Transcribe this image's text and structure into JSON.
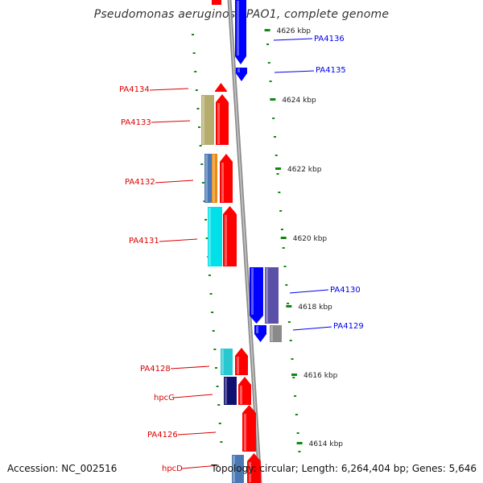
{
  "title": "Pseudomonas aeruginosa PAO1, complete genome",
  "footer": {
    "accession": "Accession: NC_002516",
    "summary": "Topology: circular; Length: 6,264,404 bp; Genes: 5,646"
  },
  "kbp_ticks": [
    "4626 kbp",
    "4624 kbp",
    "4622 kbp",
    "4620 kbp",
    "4618 kbp",
    "4616 kbp",
    "4614 kbp"
  ],
  "genes": [
    {
      "label": "PA4136",
      "strand": "-",
      "color": "#0000ee"
    },
    {
      "label": "PA4135",
      "strand": "-",
      "color": "#0000ee"
    },
    {
      "label": "PA4134",
      "strand": "+",
      "color": "#dd0000"
    },
    {
      "label": "PA4133",
      "strand": "+",
      "color": "#dd0000"
    },
    {
      "label": "PA4132",
      "strand": "+",
      "color": "#dd0000"
    },
    {
      "label": "PA4131",
      "strand": "+",
      "color": "#dd0000"
    },
    {
      "label": "PA4130",
      "strand": "-",
      "color": "#0000ee"
    },
    {
      "label": "PA4129",
      "strand": "-",
      "color": "#0000ee"
    },
    {
      "label": "PA4128",
      "strand": "+",
      "color": "#dd0000"
    },
    {
      "label": "hpcG",
      "strand": "+",
      "color": "#dd0000"
    },
    {
      "label": "PA4126",
      "strand": "+",
      "color": "#dd0000"
    },
    {
      "label": "hpcD",
      "strand": "+",
      "color": "#dd0000"
    }
  ],
  "colors": {
    "forward": "#ff0000",
    "reverse": "#0000ff",
    "backbone": "#8c8c8c",
    "ticks": "#118811",
    "cog_khaki": "#b5ad6e",
    "cog_steelblue": "#4a78b4",
    "cog_orange": "#e88a10",
    "cog_cyan": "#00e0e8",
    "cog_slate": "#5a50a8",
    "cog_gray": "#8a8a8a",
    "cog_teal": "#28c8d0",
    "cog_navy": "#101070"
  }
}
